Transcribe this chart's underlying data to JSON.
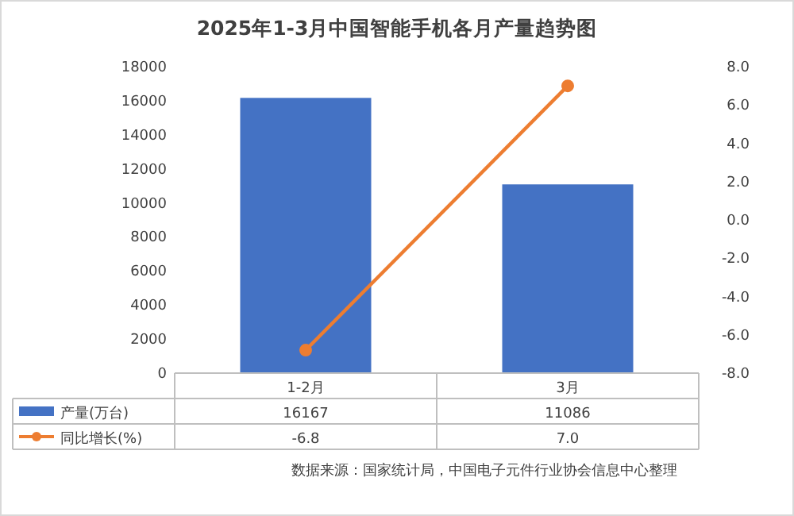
{
  "chart_data": {
    "type": "bar",
    "title": "2025年1-3月中国智能手机各月产量趋势图",
    "categories": [
      "1-2月",
      "3月"
    ],
    "series": [
      {
        "name": "产量(万台)",
        "color": "#4472c4",
        "values": [
          16167,
          11086
        ],
        "value_labels": [
          "16167",
          "11086"
        ]
      },
      {
        "name": "同比增长(%)",
        "type": "line",
        "axis": "y2",
        "color": "#ed7d31",
        "marker": "circle",
        "values": [
          -6.8,
          7.0
        ],
        "value_labels": [
          "-6.8",
          "7.0"
        ]
      }
    ],
    "ylim": [
      0,
      18000
    ],
    "yticks": [
      0,
      2000,
      4000,
      6000,
      8000,
      10000,
      12000,
      14000,
      16000,
      18000
    ],
    "y2lim": [
      -8,
      8
    ],
    "y2ticks": [
      {
        "value": -8,
        "label": "-8.0"
      },
      {
        "value": -6,
        "label": "-6.0"
      },
      {
        "value": -4,
        "label": "-4.0"
      },
      {
        "value": -2,
        "label": "-2.0"
      },
      {
        "value": 0,
        "label": "0.0"
      },
      {
        "value": 2,
        "label": "2.0"
      },
      {
        "value": 4,
        "label": "4.0"
      },
      {
        "value": 6,
        "label": "6.0"
      },
      {
        "value": 8,
        "label": "8.0"
      }
    ],
    "legend": "bottom",
    "annotations": [
      "数据来源：国家统计局，中国电子元件行业协会信息中心整理"
    ]
  }
}
